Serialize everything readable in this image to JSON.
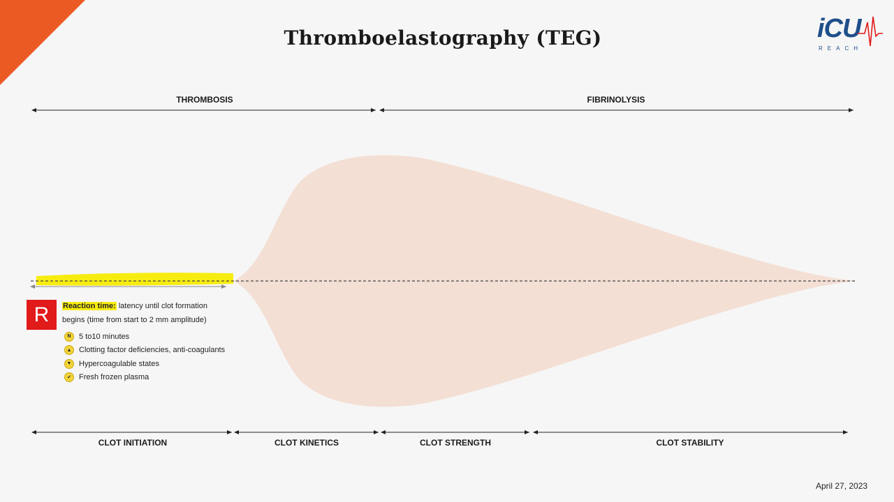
{
  "slide": {
    "title": "Thromboelastography (TEG)",
    "date": "April 27, 2023",
    "accent_color": "#ec5a24"
  },
  "logo": {
    "main": "iCU",
    "sub": "REACH",
    "color": "#1f4f8a",
    "pulse_color": "#e11a1a"
  },
  "phases": [
    {
      "label": "THROMBOSIS"
    },
    {
      "label": "FIBRINOLYSIS"
    }
  ],
  "stages": [
    {
      "label": "CLOT INITIATION"
    },
    {
      "label": "CLOT KINETICS"
    },
    {
      "label": "CLOT STRENGTH"
    },
    {
      "label": "CLOT STABILITY"
    }
  ],
  "curve": {
    "fill_color": "#f4dfd4",
    "highlight_color": "#f7ec10"
  },
  "r_panel": {
    "letter": "R",
    "term": "Reaction time:",
    "desc_line1": " latency until clot formation",
    "desc_line2": "begins (time from start to 2 mm amplitude)",
    "items": [
      {
        "icon": "normal-icon",
        "badge": "N",
        "text": "5 to10 minutes"
      },
      {
        "icon": "arrow-up-icon",
        "badge": "▲",
        "text": "Clotting factor deficiencies,  anti-coagulants"
      },
      {
        "icon": "arrow-down-icon",
        "badge": "▼",
        "text": "Hypercoagulable states"
      },
      {
        "icon": "check-icon",
        "badge": "✔",
        "text": "Fresh frozen plasma"
      }
    ]
  }
}
